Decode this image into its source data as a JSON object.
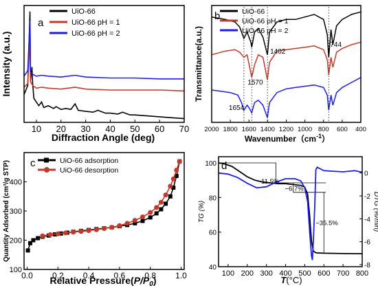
{
  "chart_data": [
    {
      "panel": "a",
      "type": "line",
      "xlabel": "Diffraction Angle (deg)",
      "ylabel": "Intensity (a.u.)",
      "xlim": [
        5,
        70
      ],
      "x_ticks": [
        10,
        20,
        30,
        40,
        50,
        60,
        70
      ],
      "legend_position": "top-left",
      "series": [
        {
          "name": "UiO-66",
          "color": "#000000",
          "x": [
            5,
            6.5,
            7.4,
            7.6,
            8.2,
            8.5,
            9,
            11,
            12.1,
            13,
            14.8,
            17,
            18,
            20,
            22,
            24,
            25.7,
            27,
            30,
            33,
            35,
            38,
            40,
            43,
            45,
            48,
            50,
            55,
            60,
            65,
            70
          ],
          "y": [
            30,
            40,
            120,
            45,
            60,
            42,
            26,
            18,
            22,
            16,
            18,
            15,
            17,
            14,
            15,
            14,
            20,
            13,
            12,
            11,
            13,
            10,
            10,
            9,
            11,
            8,
            8,
            7,
            6,
            5,
            4
          ]
        },
        {
          "name": "UiO-66 pH = 1",
          "color": "#c0392b",
          "x": [
            5,
            6.5,
            7.4,
            7.6,
            8.5,
            10,
            12.1,
            15,
            20,
            25.7,
            30,
            40,
            50,
            60,
            70
          ],
          "y": [
            38,
            42,
            95,
            44,
            40,
            37,
            38,
            37,
            36,
            38,
            36,
            35,
            35,
            35,
            34
          ]
        },
        {
          "name": "UiO-66 pH = 2",
          "color": "#1c1cf0",
          "x": [
            5,
            6.5,
            7.4,
            7.6,
            8.5,
            10,
            12.1,
            15,
            20,
            25.7,
            30,
            40,
            50,
            60,
            70
          ],
          "y": [
            50,
            56,
            110,
            55,
            52,
            50,
            51,
            50,
            49,
            51,
            49,
            48,
            48,
            47,
            47
          ]
        }
      ]
    },
    {
      "panel": "b",
      "type": "line",
      "xlabel": "Wavenumber（cm",
      "xlabel_sup": "-1",
      "xlabel_close": "）",
      "ylabel": "Transmittance(a.u.)",
      "xlim": [
        2000,
        400
      ],
      "x_ticks": [
        2000,
        1800,
        1600,
        1400,
        1200,
        1000,
        800,
        600,
        400
      ],
      "legend_position": "top-left",
      "reference_lines": [
        1654,
        1570,
        1402,
        744
      ],
      "annotations": [
        {
          "text": "1402",
          "x": 1402
        },
        {
          "text": "744",
          "x": 744
        },
        {
          "text": "1570",
          "x": 1570
        },
        {
          "text": "1654",
          "x": 1654
        }
      ],
      "series": [
        {
          "name": "UiO-66",
          "color": "#000000",
          "x": [
            2000,
            1850,
            1750,
            1700,
            1654,
            1620,
            1580,
            1570,
            1540,
            1500,
            1450,
            1402,
            1380,
            1300,
            1200,
            1100,
            1000,
            900,
            800,
            760,
            744,
            720,
            700,
            660,
            600,
            500,
            400
          ],
          "y": [
            82,
            80,
            78,
            74,
            65,
            70,
            62,
            58,
            70,
            73,
            66,
            52,
            70,
            78,
            80,
            80,
            82,
            84,
            80,
            68,
            50,
            72,
            60,
            75,
            80,
            84,
            86
          ]
        },
        {
          "name": "UiO-66 pH = 1",
          "color": "#c0392b",
          "x": [
            2000,
            1850,
            1750,
            1700,
            1654,
            1620,
            1570,
            1540,
            1500,
            1450,
            1402,
            1380,
            1300,
            1200,
            1100,
            1000,
            900,
            800,
            760,
            744,
            720,
            700,
            660,
            600,
            500,
            400
          ],
          "y": [
            52,
            55,
            56,
            54,
            50,
            52,
            34,
            44,
            52,
            50,
            32,
            46,
            55,
            56,
            57,
            58,
            59,
            56,
            48,
            36,
            50,
            42,
            54,
            57,
            60,
            62
          ]
        },
        {
          "name": "UiO-66 pH = 2",
          "color": "#1c1cf0",
          "x": [
            2000,
            1900,
            1800,
            1720,
            1680,
            1654,
            1620,
            1600,
            1570,
            1540,
            1500,
            1450,
            1402,
            1380,
            1300,
            1200,
            1100,
            1000,
            900,
            800,
            760,
            744,
            720,
            700,
            660,
            600,
            500,
            400
          ],
          "y": [
            24,
            23,
            22,
            20,
            14,
            8,
            12,
            10,
            6,
            14,
            16,
            12,
            2,
            14,
            22,
            25,
            26,
            27,
            28,
            26,
            20,
            8,
            20,
            12,
            22,
            26,
            30,
            34
          ]
        }
      ]
    },
    {
      "panel": "c",
      "type": "line",
      "xlabel": "Relative Pressure(",
      "xlabel_italic": "P/P",
      "xlabel_sub": "0",
      "xlabel_close": ")",
      "ylabel": "Quantity Adsorbed (cm³/g STP)",
      "xlim": [
        -0.02,
        1.02
      ],
      "ylim": [
        100,
        500
      ],
      "x_ticks": [
        0.0,
        0.2,
        0.4,
        0.6,
        0.8,
        1.0
      ],
      "y_ticks": [
        100,
        200,
        300,
        400
      ],
      "legend_position": "top-left",
      "series": [
        {
          "name": "UiO-66 adsorption",
          "color": "#000000",
          "marker": "square",
          "x": [
            0.005,
            0.02,
            0.04,
            0.07,
            0.1,
            0.14,
            0.18,
            0.22,
            0.26,
            0.3,
            0.35,
            0.4,
            0.45,
            0.5,
            0.55,
            0.6,
            0.65,
            0.7,
            0.75,
            0.8,
            0.84,
            0.87,
            0.9,
            0.93,
            0.95,
            0.97,
            0.99
          ],
          "y": [
            165,
            190,
            200,
            207,
            212,
            216,
            220,
            223,
            226,
            229,
            232,
            235,
            238,
            241,
            244,
            248,
            252,
            258,
            266,
            278,
            292,
            306,
            325,
            350,
            380,
            420,
            470
          ]
        },
        {
          "name": "UiO-66 desorption",
          "color": "#c0392b",
          "marker": "circle",
          "x": [
            0.99,
            0.97,
            0.95,
            0.93,
            0.9,
            0.87,
            0.84,
            0.8,
            0.75,
            0.7,
            0.65,
            0.6,
            0.55,
            0.5,
            0.45,
            0.4,
            0.35,
            0.3,
            0.25,
            0.2,
            0.15,
            0.1
          ],
          "y": [
            470,
            440,
            410,
            385,
            355,
            330,
            312,
            295,
            280,
            268,
            258,
            250,
            244,
            240,
            236,
            233,
            230,
            228,
            225,
            222,
            219,
            215
          ]
        }
      ]
    },
    {
      "panel": "d",
      "type": "line",
      "xlabel": "T",
      "xlabel_unit": "(°C)",
      "ylabel_left": "TG (%)",
      "ylabel_right": "DTG (%/min)",
      "xlim": [
        50,
        800
      ],
      "ylim_left": [
        40,
        102
      ],
      "ylim_right": [
        -8,
        1
      ],
      "x_ticks": [
        100,
        200,
        300,
        400,
        500,
        600,
        700,
        800
      ],
      "y_ticks_left": [
        40,
        60,
        80,
        100
      ],
      "y_ticks_right": [
        0,
        -2,
        -4,
        -6,
        -8
      ],
      "annotations": [
        {
          "text": "−11.5%",
          "x": 310,
          "y": 88
        },
        {
          "text": "−6.7%",
          "x": 445,
          "y": 84
        },
        {
          "text": "−35.5%",
          "x": 615,
          "y": 64
        }
      ],
      "series": [
        {
          "name": "TG",
          "color": "#000000",
          "axis": "left",
          "x": [
            50,
            80,
            120,
            160,
            200,
            240,
            280,
            320,
            360,
            400,
            440,
            480,
            500,
            515,
            525,
            535,
            545,
            560,
            600,
            700,
            800
          ],
          "y": [
            100,
            99.5,
            98,
            95,
            92,
            90,
            89,
            88.5,
            88,
            88,
            87.5,
            87,
            86,
            82,
            70,
            55,
            49,
            48,
            47.8,
            47.6,
            47.5
          ]
        },
        {
          "name": "DTG",
          "color": "#1c1cf0",
          "axis": "right",
          "x": [
            50,
            100,
            150,
            200,
            250,
            300,
            350,
            400,
            450,
            480,
            500,
            515,
            525,
            535,
            540,
            545,
            552,
            558,
            565,
            600,
            700,
            760,
            790,
            800
          ],
          "y": [
            0,
            -0.1,
            -0.4,
            -0.9,
            -1.3,
            -1.2,
            -0.8,
            -0.5,
            -0.5,
            -0.7,
            -1.3,
            -2.5,
            -5.0,
            -7.2,
            -7.6,
            -6.0,
            -3.0,
            0.3,
            0.5,
            0.2,
            0.1,
            0.2,
            0.1,
            0.05
          ]
        }
      ]
    }
  ]
}
